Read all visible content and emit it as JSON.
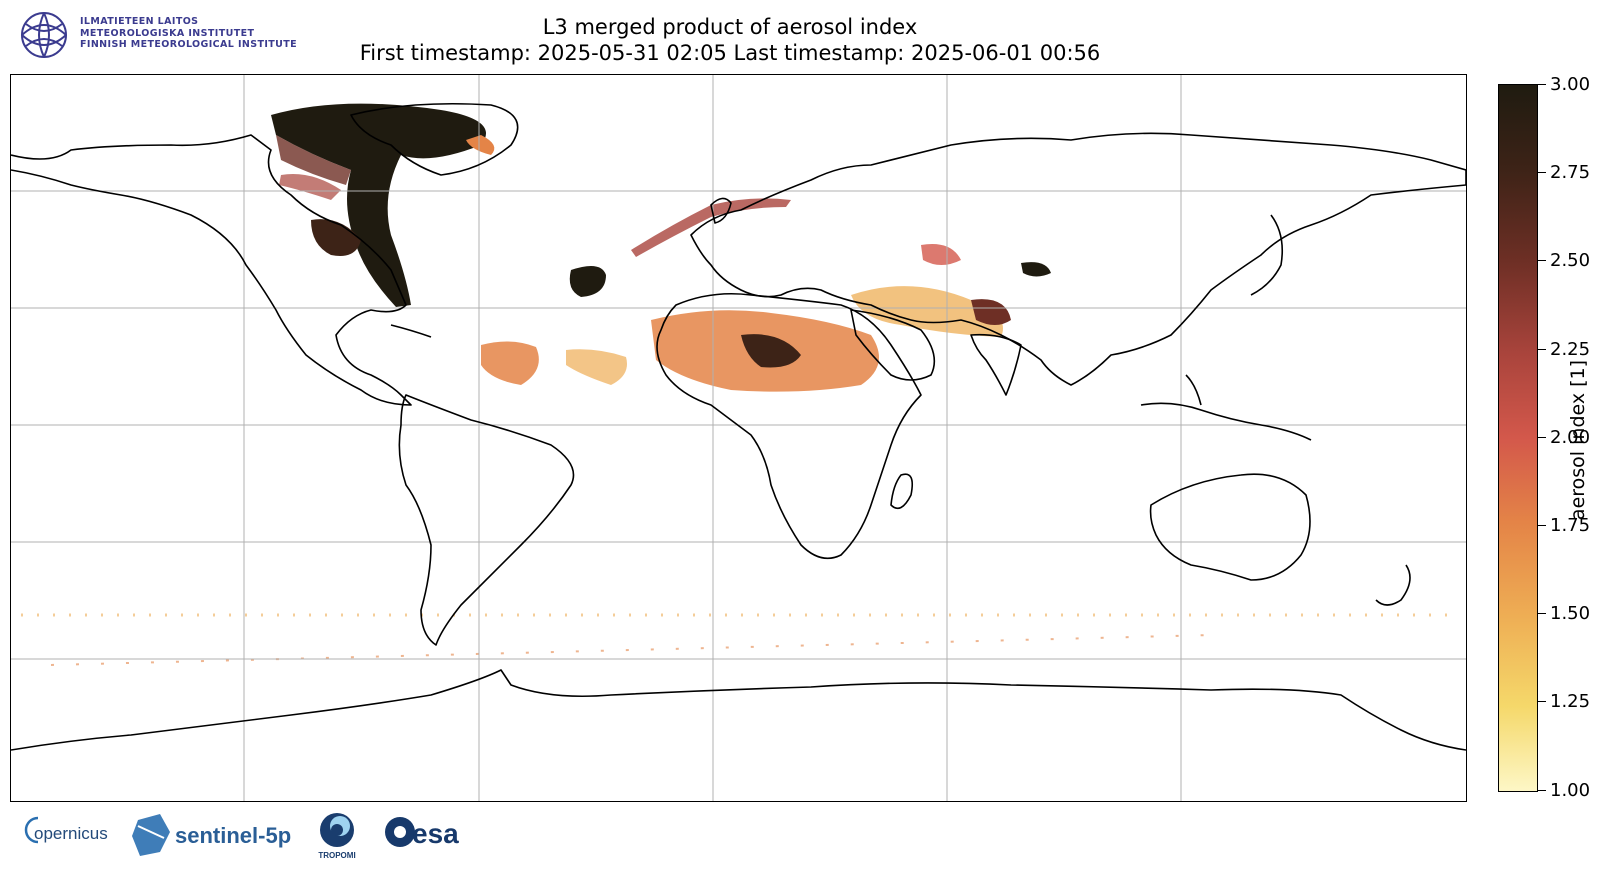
{
  "header": {
    "org_lines": [
      "ILMATIETEEN LAITOS",
      "METEOROLOGISKA INSTITUTET",
      "FINNISH METEOROLOGICAL INSTITUTE"
    ],
    "org_logo_icon": "fmi-globe-logo-icon",
    "brand_color": "#3b3b8f"
  },
  "title": {
    "line1": "L3 merged product of aerosol index",
    "line2": "First timestamp: 2025-05-31 02:05   Last timestamp: 2025-06-01 00:56"
  },
  "map": {
    "projection": "plate-carree",
    "gridlines": true,
    "coastlines": true,
    "variable": "aerosol index"
  },
  "colorbar": {
    "label": "aerosol index [1]",
    "min": 1.0,
    "max": 3.0,
    "ticks": [
      "3.00",
      "2.75",
      "2.50",
      "2.25",
      "2.00",
      "1.75",
      "1.50",
      "1.25",
      "1.00"
    ],
    "colormap": "yellow-orange-red-brown"
  },
  "footer": {
    "logos": [
      {
        "icon": "copernicus-logo-icon",
        "text": "opernicus"
      },
      {
        "icon": "sentinel-5p-logo-icon",
        "text": "sentinel-5p"
      },
      {
        "icon": "tropomi-logo-icon",
        "text": "TROPOMI"
      },
      {
        "icon": "esa-logo-icon",
        "text": "esa"
      }
    ]
  }
}
